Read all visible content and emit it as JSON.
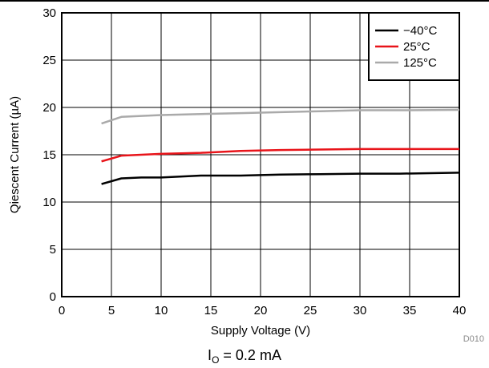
{
  "chart_data": {
    "type": "line",
    "xlabel": "Supply Voltage (V)",
    "ylabel": "Qiescent Current (µA)",
    "xlim": [
      0,
      40
    ],
    "ylim": [
      0,
      30
    ],
    "xticks": [
      0,
      5,
      10,
      15,
      20,
      25,
      30,
      35,
      40
    ],
    "yticks": [
      0,
      5,
      10,
      15,
      20,
      25,
      30
    ],
    "grid": true,
    "legend_position": "top-right",
    "series": [
      {
        "name": "−40°C",
        "color": "#000000",
        "x": [
          4,
          6,
          8,
          10,
          14,
          18,
          22,
          26,
          30,
          34,
          40
        ],
        "y": [
          11.9,
          12.5,
          12.6,
          12.6,
          12.8,
          12.8,
          12.9,
          12.95,
          13.0,
          13.0,
          13.1
        ]
      },
      {
        "name": "25°C",
        "color": "#e8141a",
        "x": [
          4,
          6,
          8,
          10,
          14,
          18,
          22,
          26,
          30,
          34,
          40
        ],
        "y": [
          14.3,
          14.9,
          15.0,
          15.1,
          15.2,
          15.4,
          15.5,
          15.55,
          15.6,
          15.6,
          15.6
        ]
      },
      {
        "name": "125°C",
        "color": "#aaaaaa",
        "x": [
          4,
          6,
          8,
          10,
          14,
          18,
          22,
          26,
          30,
          34,
          40
        ],
        "y": [
          18.3,
          19.0,
          19.1,
          19.2,
          19.3,
          19.4,
          19.5,
          19.6,
          19.7,
          19.7,
          19.75
        ]
      }
    ]
  },
  "figure_id": "D010",
  "caption": {
    "main": "I",
    "subscript": "O",
    "rest": " = 0.2 mA"
  }
}
